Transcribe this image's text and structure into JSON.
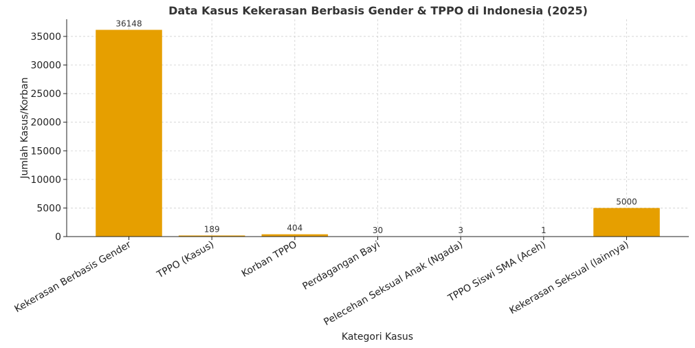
{
  "chart_data": {
    "type": "bar",
    "title": "Data Kasus Kekerasan Berbasis Gender & TPPO di Indonesia (2025)",
    "xlabel": "Kategori Kasus",
    "ylabel": "Jumlah Kasus/Korban",
    "categories": [
      "Kekerasan Berbasis Gender",
      "TPPO (Kasus)",
      "Korban TPPO",
      "Perdagangan Bayi",
      "Pelecehan Seksual Anak (Ngada)",
      "TPPO Siswi SMA (Aceh)",
      "Kekerasan Seksual (lainnya)"
    ],
    "values": [
      36148,
      189,
      404,
      30,
      3,
      1,
      5000
    ],
    "data_labels": [
      "36148",
      "189",
      "404",
      "30",
      "3",
      "1",
      "5000"
    ],
    "yticks": [
      0,
      5000,
      10000,
      15000,
      20000,
      25000,
      30000,
      35000
    ],
    "ytick_labels": [
      "0",
      "5000",
      "10000",
      "15000",
      "20000",
      "25000",
      "30000",
      "35000"
    ],
    "ylim": [
      0,
      38000
    ],
    "grid": true,
    "bar_color": "#E69F00"
  }
}
